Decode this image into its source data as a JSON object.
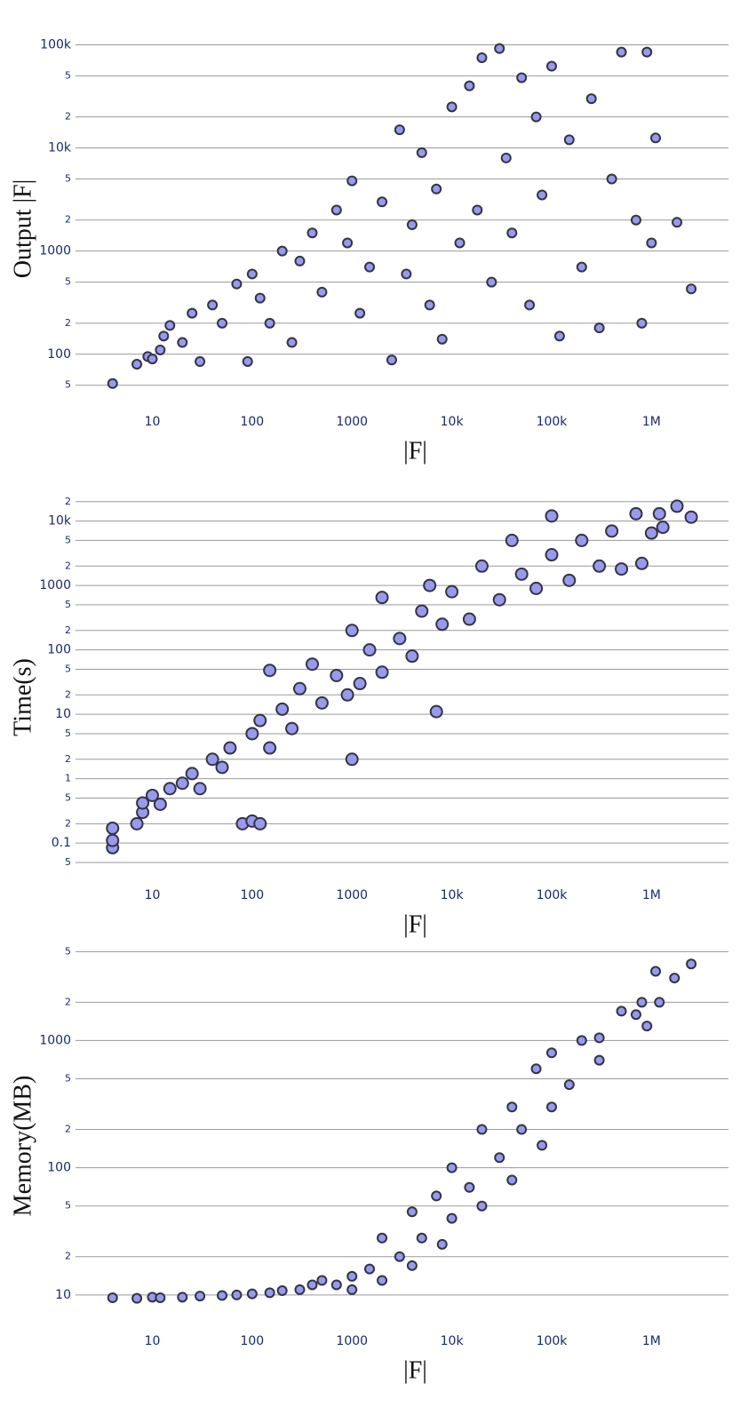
{
  "chart_data": [
    {
      "type": "scatter",
      "x_label": "|F|",
      "y_label": "Output |F|",
      "color": "#9999ee",
      "log_x": true,
      "log_y": true,
      "grid": true,
      "xlim": [
        1.7,
        5900000
      ],
      "ylim": [
        40,
        150000
      ],
      "xticks": [
        10,
        100,
        1000,
        {
          "value": 10000,
          "label": "10k"
        },
        {
          "value": 100000,
          "label": "100k"
        },
        {
          "value": 1000000,
          "label": "1M"
        }
      ],
      "yticks": [
        {
          "value": 50,
          "label": "5"
        },
        100,
        {
          "value": 200,
          "label": "2"
        },
        {
          "value": 500,
          "label": "5"
        },
        1000,
        {
          "value": 2000,
          "label": "2"
        },
        {
          "value": 5000,
          "label": "5"
        },
        {
          "value": 10000,
          "label": "10k"
        },
        {
          "value": 20000,
          "label": "2"
        },
        {
          "value": 50000,
          "label": "5"
        },
        {
          "value": 100000,
          "label": "100k"
        }
      ],
      "x": [
        4,
        7,
        9,
        10,
        12,
        13,
        15,
        20,
        25,
        30,
        40,
        50,
        70,
        90,
        100,
        120,
        150,
        200,
        250,
        300,
        400,
        500,
        700,
        900,
        1000,
        1200,
        1500,
        2000,
        2500,
        3000,
        3500,
        4000,
        5000,
        6000,
        7000,
        8000,
        10000,
        12000,
        15000,
        18000,
        20000,
        25000,
        30000,
        35000,
        40000,
        50000,
        60000,
        70000,
        80000,
        100000,
        120000,
        150000,
        200000,
        250000,
        300000,
        400000,
        500000,
        700000,
        800000,
        900000,
        1000000,
        1100000,
        1800000,
        2500000
      ],
      "values": [
        52,
        80,
        95,
        90,
        110,
        150,
        190,
        130,
        250,
        85,
        300,
        200,
        480,
        85,
        600,
        350,
        200,
        1000,
        130,
        800,
        1500,
        400,
        2500,
        1200,
        4800,
        250,
        700,
        3000,
        88,
        15000,
        600,
        1800,
        9000,
        300,
        4000,
        140,
        25000,
        1200,
        40000,
        2500,
        75000,
        500,
        92000,
        8000,
        1500,
        48000,
        300,
        20000,
        3500,
        62000,
        150,
        12000,
        700,
        30000,
        180,
        5000,
        85000,
        2000,
        200,
        85000,
        1200,
        12500,
        1900,
        430
      ]
    },
    {
      "type": "scatter",
      "x_label": "|F|",
      "y_label": "Time(s)",
      "color": "#9999ee",
      "log_x": true,
      "log_y": true,
      "grid": true,
      "xlim": [
        1.7,
        5900000
      ],
      "ylim": [
        0.04,
        30000
      ],
      "xticks": [
        10,
        100,
        1000,
        {
          "value": 10000,
          "label": "10k"
        },
        {
          "value": 100000,
          "label": "100k"
        },
        {
          "value": 1000000,
          "label": "1M"
        }
      ],
      "yticks": [
        {
          "value": 0.05,
          "label": "5"
        },
        0.1,
        {
          "value": 0.2,
          "label": "2"
        },
        {
          "value": 0.5,
          "label": "5"
        },
        1,
        {
          "value": 2,
          "label": "2"
        },
        5,
        10,
        {
          "value": 20,
          "label": "2"
        },
        {
          "value": 50,
          "label": "5"
        },
        100,
        {
          "value": 200,
          "label": "2"
        },
        {
          "value": 500,
          "label": "5"
        },
        1000,
        {
          "value": 2000,
          "label": "2"
        },
        {
          "value": 5000,
          "label": "5"
        },
        {
          "value": 10000,
          "label": "10k"
        },
        {
          "value": 20000,
          "label": "2"
        }
      ],
      "x": [
        4,
        4,
        4,
        7,
        8,
        8,
        10,
        12,
        15,
        20,
        25,
        30,
        40,
        50,
        60,
        80,
        100,
        120,
        100,
        120,
        150,
        150,
        200,
        250,
        300,
        400,
        500,
        700,
        900,
        1000,
        1000,
        1200,
        1500,
        2000,
        2000,
        3000,
        4000,
        5000,
        6000,
        7000,
        8000,
        10000,
        15000,
        20000,
        30000,
        40000,
        50000,
        70000,
        100000,
        100000,
        150000,
        200000,
        300000,
        400000,
        500000,
        700000,
        800000,
        1000000,
        1200000,
        1300000,
        1800000,
        2500000
      ],
      "values": [
        0.085,
        0.11,
        0.17,
        0.2,
        0.3,
        0.42,
        0.55,
        0.4,
        0.7,
        0.85,
        1.2,
        0.7,
        2,
        1.5,
        3,
        0.2,
        0.22,
        0.2,
        5,
        8,
        48,
        3,
        12,
        6,
        25,
        60,
        15,
        40,
        20,
        2,
        200,
        30,
        100,
        650,
        45,
        150,
        80,
        400,
        1000,
        11,
        250,
        800,
        300,
        2000,
        600,
        5000,
        1500,
        900,
        12000,
        3000,
        1200,
        5000,
        2000,
        7000,
        1800,
        13000,
        2200,
        6500,
        13000,
        8000,
        17000,
        11500
      ]
    },
    {
      "type": "scatter",
      "x_label": "|F|",
      "y_label": "Memory(MB)",
      "color": "#9999ee",
      "log_x": true,
      "log_y": true,
      "grid": true,
      "xlim": [
        1.7,
        5900000
      ],
      "ylim": [
        7,
        6000
      ],
      "xticks": [
        10,
        100,
        1000,
        {
          "value": 10000,
          "label": "10k"
        },
        {
          "value": 100000,
          "label": "100k"
        },
        {
          "value": 1000000,
          "label": "1M"
        }
      ],
      "yticks": [
        10,
        {
          "value": 20,
          "label": "2"
        },
        {
          "value": 50,
          "label": "5"
        },
        100,
        {
          "value": 200,
          "label": "2"
        },
        {
          "value": 500,
          "label": "5"
        },
        1000,
        {
          "value": 2000,
          "label": "2"
        },
        {
          "value": 5000,
          "label": "5"
        }
      ],
      "x": [
        4,
        7,
        10,
        12,
        20,
        30,
        50,
        70,
        100,
        150,
        200,
        300,
        400,
        500,
        700,
        1000,
        1000,
        1500,
        2000,
        2000,
        3000,
        4000,
        4000,
        5000,
        7000,
        8000,
        10000,
        10000,
        15000,
        20000,
        20000,
        30000,
        40000,
        40000,
        50000,
        70000,
        80000,
        100000,
        100000,
        150000,
        200000,
        300000,
        300000,
        500000,
        700000,
        800000,
        900000,
        1100000,
        1200000,
        1700000,
        2500000
      ],
      "values": [
        9.5,
        9.4,
        9.6,
        9.5,
        9.6,
        9.8,
        9.9,
        10,
        10.2,
        10.4,
        10.8,
        11,
        12,
        13,
        12,
        14,
        11,
        16,
        28,
        13,
        20,
        45,
        17,
        28,
        60,
        25,
        100,
        40,
        70,
        200,
        50,
        120,
        300,
        80,
        200,
        600,
        150,
        800,
        300,
        450,
        1000,
        1050,
        700,
        1700,
        1600,
        2000,
        1300,
        3500,
        2000,
        3100,
        4000
      ]
    }
  ]
}
